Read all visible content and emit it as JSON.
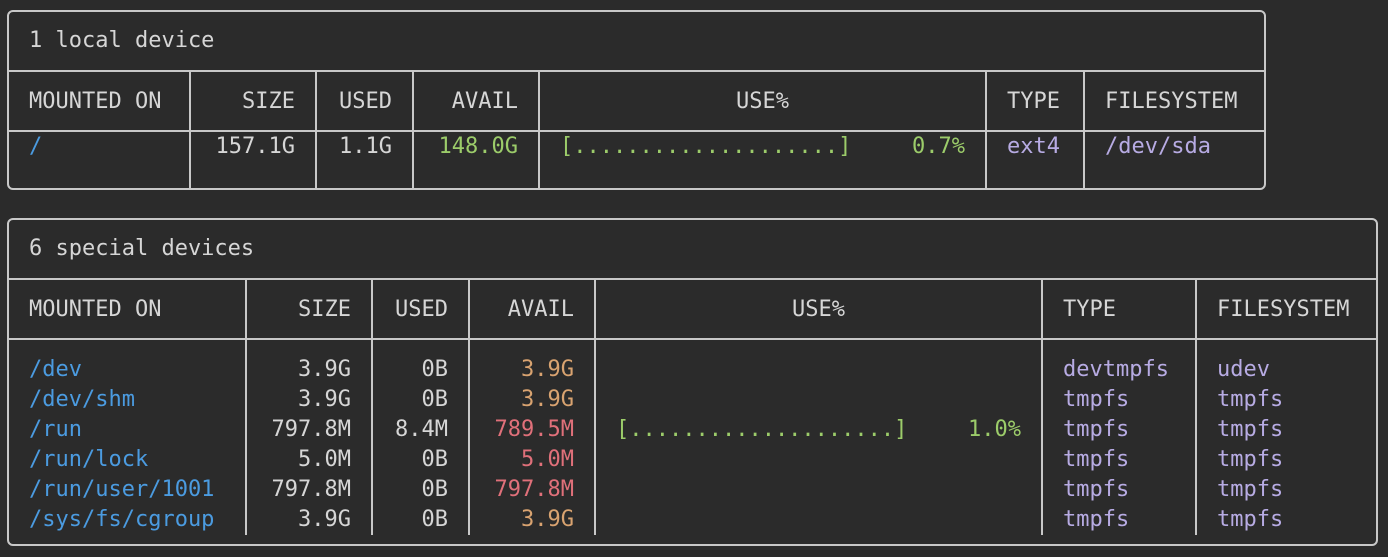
{
  "colors": {
    "background": "#2b2b2b",
    "border": "#c8c8c8",
    "mount": "#4b9be0",
    "avail_ok": "#9ccc6a",
    "avail_warn": "#d9a370",
    "avail_low": "#e0707a",
    "type": "#b7abe3"
  },
  "headers": [
    "MOUNTED ON",
    "SIZE",
    "USED",
    "AVAIL",
    "USE%",
    "TYPE",
    "FILESYSTEM"
  ],
  "local": {
    "title": "1 local device",
    "rows": [
      {
        "mount": "/",
        "size": "157.1G",
        "used": "1.1G",
        "avail": "148.0G",
        "avail_color": "green",
        "bar": "[....................]",
        "use_pct": "0.7%",
        "type": "ext4",
        "filesystem": "/dev/sda"
      }
    ]
  },
  "special": {
    "title": "6 special devices",
    "rows": [
      {
        "mount": "/dev",
        "size": "3.9G",
        "used": "0B",
        "avail": "3.9G",
        "avail_color": "orange",
        "bar": "",
        "use_pct": "",
        "type": "devtmpfs",
        "filesystem": "udev"
      },
      {
        "mount": "/dev/shm",
        "size": "3.9G",
        "used": "0B",
        "avail": "3.9G",
        "avail_color": "orange",
        "bar": "",
        "use_pct": "",
        "type": "tmpfs",
        "filesystem": "tmpfs"
      },
      {
        "mount": "/run",
        "size": "797.8M",
        "used": "8.4M",
        "avail": "789.5M",
        "avail_color": "red",
        "bar": "[....................]",
        "use_pct": "1.0%",
        "type": "tmpfs",
        "filesystem": "tmpfs"
      },
      {
        "mount": "/run/lock",
        "size": "5.0M",
        "used": "0B",
        "avail": "5.0M",
        "avail_color": "red",
        "bar": "",
        "use_pct": "",
        "type": "tmpfs",
        "filesystem": "tmpfs"
      },
      {
        "mount": "/run/user/1001",
        "size": "797.8M",
        "used": "0B",
        "avail": "797.8M",
        "avail_color": "red",
        "bar": "",
        "use_pct": "",
        "type": "tmpfs",
        "filesystem": "tmpfs"
      },
      {
        "mount": "/sys/fs/cgroup",
        "size": "3.9G",
        "used": "0B",
        "avail": "3.9G",
        "avail_color": "orange",
        "bar": "",
        "use_pct": "",
        "type": "tmpfs",
        "filesystem": "tmpfs"
      }
    ]
  }
}
